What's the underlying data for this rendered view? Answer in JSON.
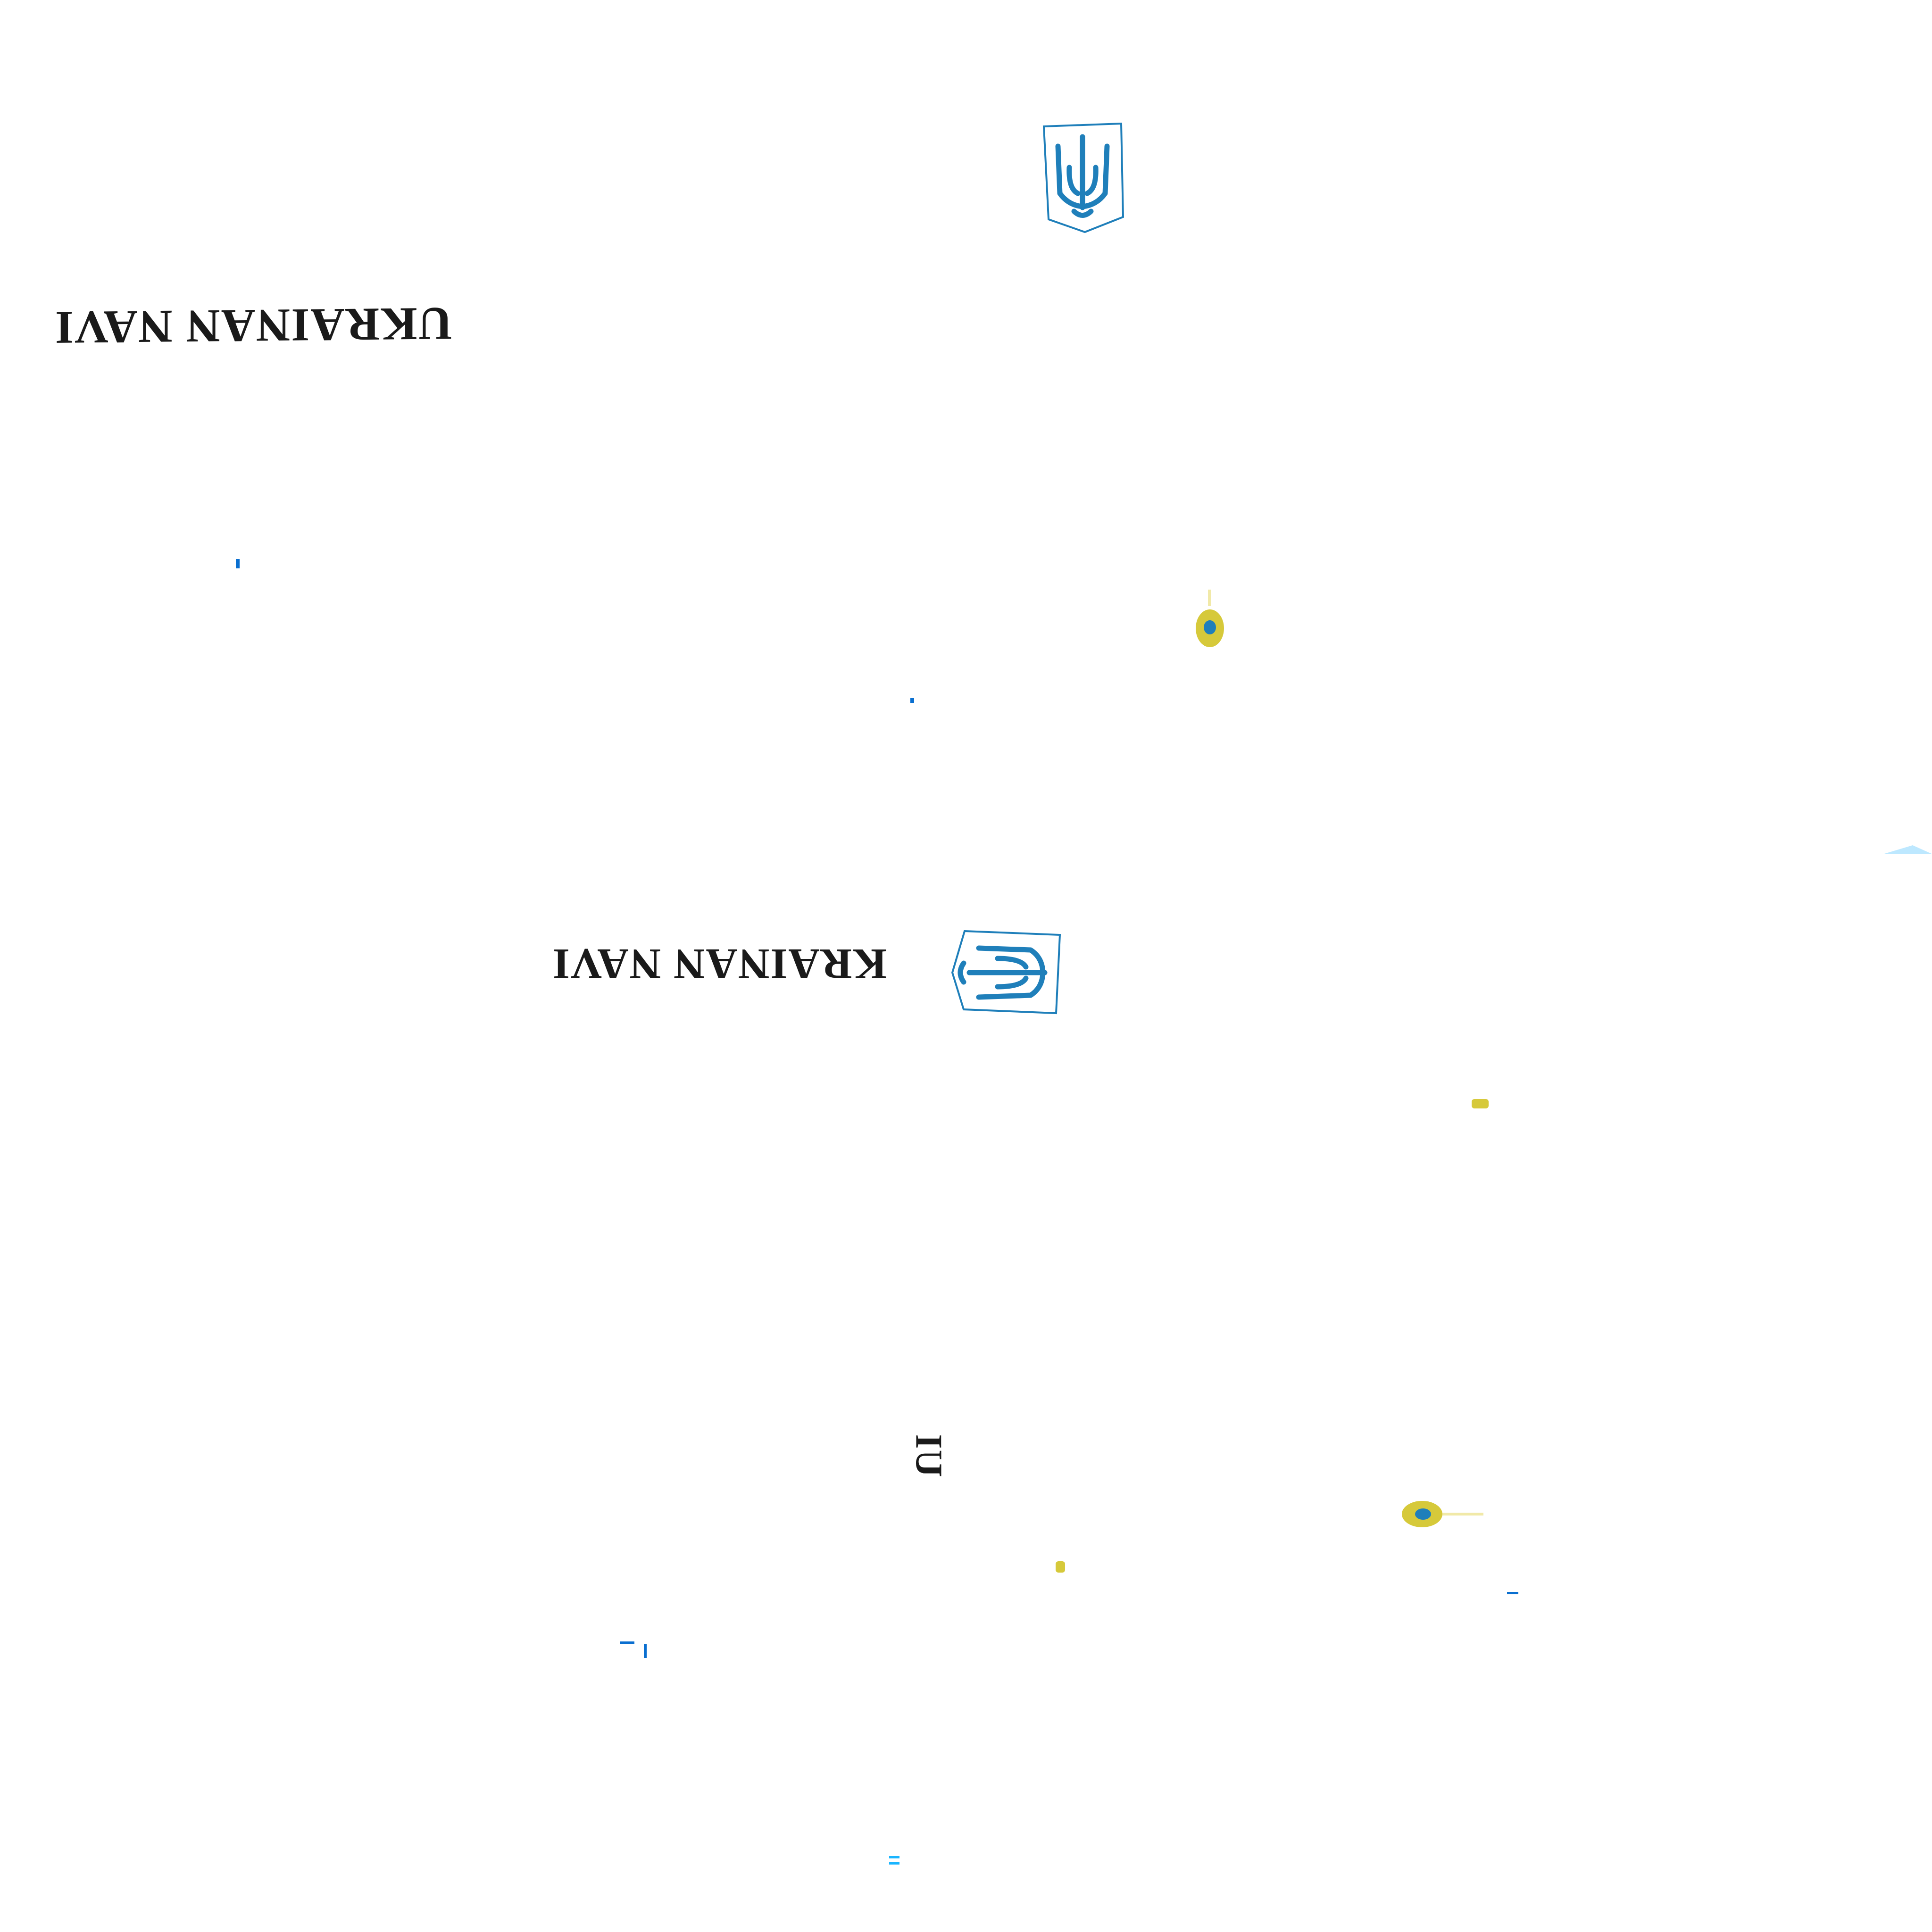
{
  "wordmarks": {
    "primary": "UKRAINAN NAVI",
    "secondary": "KRAINAN NAVI",
    "fragment": "UI"
  },
  "colors": {
    "background": "#ffffff",
    "wordmark": "#1a1a1a",
    "emblem_blue": "#1f7fba",
    "accent_yellow": "#d6c93a",
    "speck_blue": "#0a6fd0"
  },
  "icons": {
    "emblem": "trident-emblem-icon",
    "pin": "location-pin-icon"
  }
}
